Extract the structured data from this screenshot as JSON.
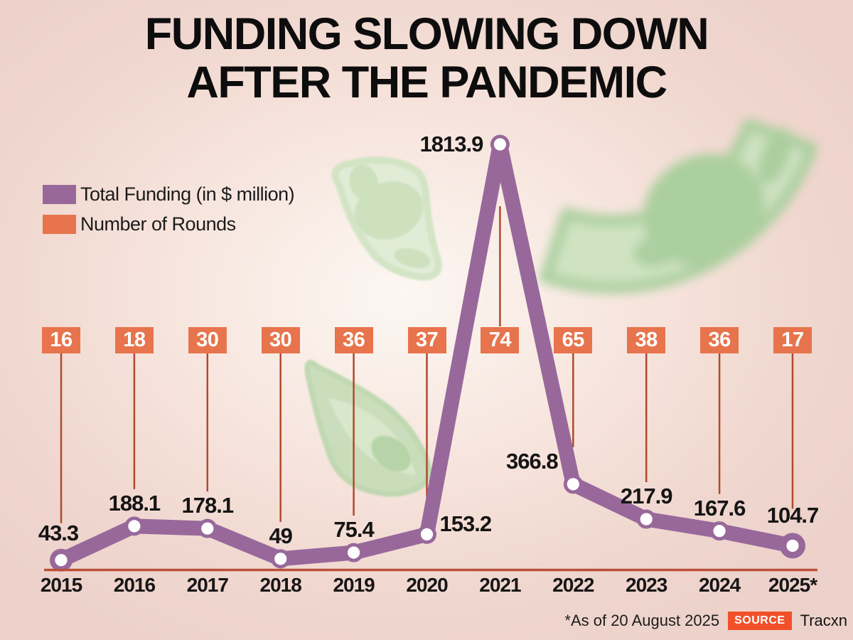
{
  "title": {
    "line1": "FUNDING SLOWING DOWN",
    "line2": "AFTER THE PANDEMIC"
  },
  "legend": {
    "items": [
      {
        "label": "Total Funding (in $ million)",
        "color": "#98689b"
      },
      {
        "label": "Number of Rounds",
        "color": "#e7744c"
      }
    ]
  },
  "chart_data": {
    "type": "line",
    "categories": [
      "2015",
      "2016",
      "2017",
      "2018",
      "2019",
      "2020",
      "2021",
      "2022",
      "2023",
      "2024",
      "2025*"
    ],
    "series": [
      {
        "name": "Total Funding (in $ million)",
        "values": [
          43.3,
          188.1,
          178.1,
          49,
          75.4,
          153.2,
          1813.9,
          366.8,
          217.9,
          167.6,
          104.7
        ],
        "color": "#98689b",
        "style": "thick-line-with-dots"
      },
      {
        "name": "Number of Rounds",
        "values": [
          16,
          18,
          30,
          30,
          36,
          37,
          74,
          65,
          38,
          36,
          17
        ],
        "color": "#e7744c",
        "style": "badges"
      }
    ],
    "ylim": [
      0,
      1813.9
    ],
    "grid": false,
    "legend_position": "top-left",
    "annotations": "each funding value labeled at its point; each rounds value shown in an orange badge with a thin connector line to its point"
  },
  "footer": {
    "note": "*As of 20 August 2025",
    "source_label": "SOURCE",
    "source_value": "Tracxn"
  },
  "colors": {
    "funding_line": "#98689b",
    "rounds_badge": "#e7744c",
    "connector": "#b04a2e",
    "baseline": "#bb5038",
    "dot_fill": "#ffffff",
    "source_badge": "#f1512a",
    "background": "#f0d8d0"
  }
}
